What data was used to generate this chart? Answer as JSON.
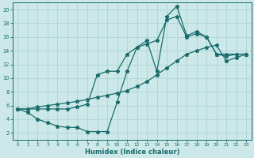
{
  "title": "",
  "xlabel": "Humidex (Indice chaleur)",
  "background_color": "#cce8e8",
  "grid_color": "#b0d8d8",
  "line_color": "#1a6b6b",
  "xlim": [
    -0.5,
    23.5
  ],
  "ylim": [
    1,
    21
  ],
  "yticks": [
    2,
    4,
    6,
    8,
    10,
    12,
    14,
    16,
    18,
    20
  ],
  "xticks": [
    0,
    1,
    2,
    3,
    4,
    5,
    6,
    7,
    8,
    9,
    10,
    11,
    12,
    13,
    14,
    15,
    16,
    17,
    18,
    19,
    20,
    21,
    22,
    23
  ],
  "line1_x": [
    0,
    1,
    2,
    3,
    4,
    5,
    6,
    7,
    8,
    9,
    10,
    11,
    12,
    13,
    14,
    15,
    16,
    17,
    18,
    19,
    20,
    21,
    22,
    23
  ],
  "line1_y": [
    5.5,
    5.0,
    4.0,
    3.5,
    3.0,
    2.8,
    2.8,
    2.2,
    2.2,
    2.2,
    6.5,
    11.0,
    14.5,
    15.5,
    11.0,
    19.0,
    20.5,
    16.2,
    16.8,
    16.0,
    13.5,
    13.2,
    13.5,
    13.5
  ],
  "line2_x": [
    0,
    1,
    2,
    3,
    4,
    5,
    6,
    7,
    8,
    9,
    10,
    11,
    12,
    13,
    14,
    15,
    16,
    17,
    18,
    19,
    20,
    21,
    22,
    23
  ],
  "line2_y": [
    5.5,
    5.5,
    5.8,
    6.0,
    6.2,
    6.4,
    6.6,
    6.9,
    7.2,
    7.5,
    7.8,
    8.2,
    8.8,
    9.5,
    10.5,
    11.5,
    12.5,
    13.5,
    14.0,
    14.5,
    14.8,
    12.5,
    13.0,
    13.5
  ],
  "line3_x": [
    0,
    1,
    2,
    3,
    4,
    5,
    6,
    7,
    8,
    9,
    10,
    11,
    12,
    13,
    14,
    15,
    16,
    17,
    18,
    19,
    20,
    21,
    22,
    23
  ],
  "line3_y": [
    5.5,
    5.5,
    5.5,
    5.5,
    5.5,
    5.5,
    5.8,
    6.2,
    10.5,
    11.0,
    11.0,
    13.5,
    14.5,
    15.0,
    15.5,
    18.5,
    19.0,
    16.0,
    16.5,
    16.0,
    13.5,
    13.5,
    13.5,
    13.5
  ]
}
